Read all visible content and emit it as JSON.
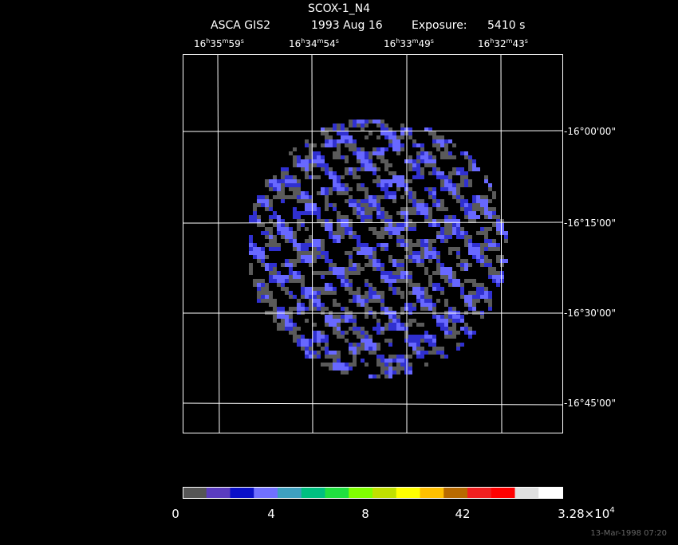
{
  "header": {
    "title": "SCOX-1_N4",
    "instrument": "ASCA GIS2",
    "date": "1993 Aug 16",
    "exposure_label": "Exposure:",
    "exposure": "5410 s"
  },
  "ra_labels": [
    [
      "16",
      "h",
      "35",
      "m",
      "59",
      "s"
    ],
    [
      "16",
      "h",
      "34",
      "m",
      "54",
      "s"
    ],
    [
      "16",
      "h",
      "33",
      "m",
      "49",
      "s"
    ],
    [
      "16",
      "h",
      "32",
      "m",
      "43",
      "s"
    ]
  ],
  "dec_labels": [
    "-16°00'00\"",
    "-16°15'00\"",
    "-16°30'00\"",
    "-16°45'00\""
  ],
  "colorbar": {
    "colors": [
      "#555555",
      "#5a3cc0",
      "#0a10c8",
      "#7070ff",
      "#3fa0c0",
      "#00c080",
      "#20e040",
      "#80ff00",
      "#c0e000",
      "#ffff00",
      "#ffc000",
      "#b86a00",
      "#f02020",
      "#ff0000",
      "#e0e0e0",
      "#ffffff"
    ],
    "labels": [
      [
        "0"
      ],
      [
        "4"
      ],
      [
        "8"
      ],
      [
        "42"
      ],
      [
        "3.28×10",
        "4"
      ]
    ]
  },
  "footer": "13-Mar-1998 07:20"
}
